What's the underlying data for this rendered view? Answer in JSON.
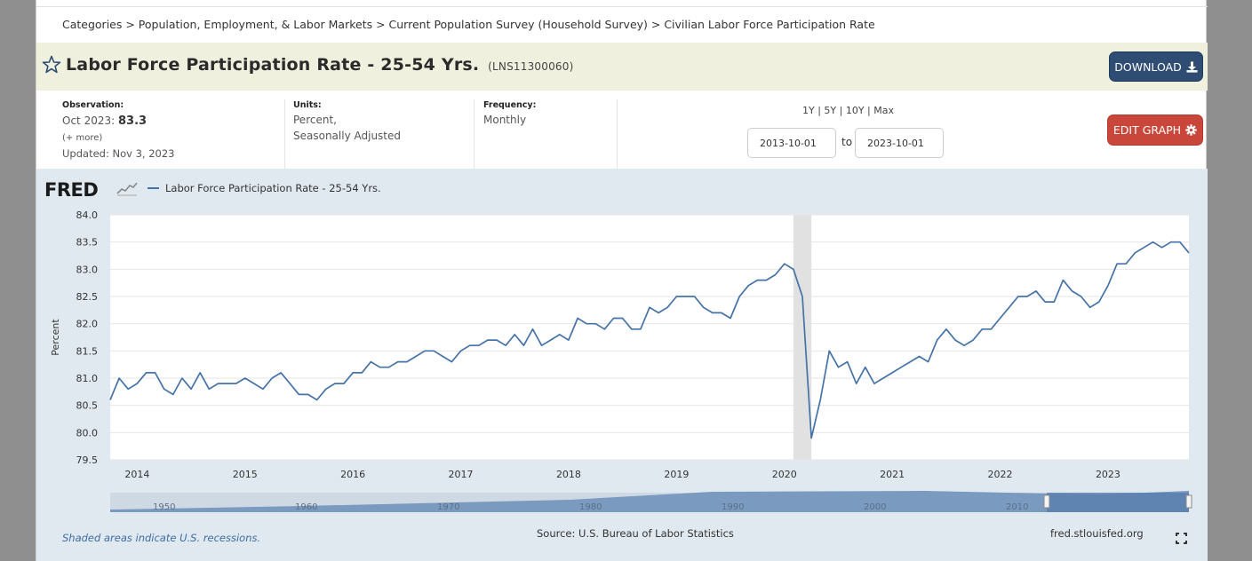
{
  "breadcrumb": {
    "text": "Categories > Population, Employment, & Labor Markets > Current Population Survey (Household Survey) > Civilian Labor Force Participation Rate"
  },
  "header": {
    "title": "Labor Force Participation Rate - 25-54 Yrs.",
    "series_id": "(LNS11300060)",
    "download_label": "DOWNLOAD",
    "edit_graph_label": "EDIT GRAPH",
    "star_icon": "star-outline-icon"
  },
  "meta": {
    "observation_label": "Observation:",
    "observation_date": "Oct 2023:",
    "observation_value": "83.3",
    "more_label": "(+ more)",
    "updated": "Updated: Nov 3, 2023",
    "units_label": "Units:",
    "units_line1": "Percent,",
    "units_line2": "Seasonally Adjusted",
    "frequency_label": "Frequency:",
    "frequency_value": "Monthly"
  },
  "range": {
    "r1y": "1Y",
    "r5y": "5Y",
    "r10y": "10Y",
    "rmax": "Max",
    "sep": " | ",
    "start": "2013-10-01",
    "end": "2023-10-01",
    "to_label": "to"
  },
  "graph": {
    "logo": "FRED",
    "legend_label": "Labor Force Participation Rate - 25-54 Yrs.",
    "series_color": "#4572a7",
    "recession_color": "#e1e1e1",
    "footnote": "Shaded areas indicate U.S. recessions.",
    "source": "Source: U.S. Bureau of Labor Statistics",
    "fred_link": "fred.stlouisfed.org"
  },
  "chart_data": {
    "type": "line",
    "ylabel": "Percent",
    "ylim": [
      79.5,
      84.0
    ],
    "yticks": [
      "84.0",
      "83.5",
      "83.0",
      "82.5",
      "82.0",
      "81.5",
      "81.0",
      "80.5",
      "80.0",
      "79.5"
    ],
    "xticks": [
      "2014",
      "2015",
      "2016",
      "2017",
      "2018",
      "2019",
      "2020",
      "2021",
      "2022",
      "2023"
    ],
    "x_start": "2013-10",
    "x_end": "2023-10",
    "grid": true,
    "recession": [
      "2020-02",
      "2020-04"
    ],
    "series": [
      {
        "name": "Labor Force Participation Rate - 25-54 Yrs.",
        "x": [
          "2013-10",
          "2013-11",
          "2013-12",
          "2014-01",
          "2014-02",
          "2014-03",
          "2014-04",
          "2014-05",
          "2014-06",
          "2014-07",
          "2014-08",
          "2014-09",
          "2014-10",
          "2014-11",
          "2014-12",
          "2015-01",
          "2015-02",
          "2015-03",
          "2015-04",
          "2015-05",
          "2015-06",
          "2015-07",
          "2015-08",
          "2015-09",
          "2015-10",
          "2015-11",
          "2015-12",
          "2016-01",
          "2016-02",
          "2016-03",
          "2016-04",
          "2016-05",
          "2016-06",
          "2016-07",
          "2016-08",
          "2016-09",
          "2016-10",
          "2016-11",
          "2016-12",
          "2017-01",
          "2017-02",
          "2017-03",
          "2017-04",
          "2017-05",
          "2017-06",
          "2017-07",
          "2017-08",
          "2017-09",
          "2017-10",
          "2017-11",
          "2017-12",
          "2018-01",
          "2018-02",
          "2018-03",
          "2018-04",
          "2018-05",
          "2018-06",
          "2018-07",
          "2018-08",
          "2018-09",
          "2018-10",
          "2018-11",
          "2018-12",
          "2019-01",
          "2019-02",
          "2019-03",
          "2019-04",
          "2019-05",
          "2019-06",
          "2019-07",
          "2019-08",
          "2019-09",
          "2019-10",
          "2019-11",
          "2019-12",
          "2020-01",
          "2020-02",
          "2020-03",
          "2020-04",
          "2020-05",
          "2020-06",
          "2020-07",
          "2020-08",
          "2020-09",
          "2020-10",
          "2020-11",
          "2020-12",
          "2021-01",
          "2021-02",
          "2021-03",
          "2021-04",
          "2021-05",
          "2021-06",
          "2021-07",
          "2021-08",
          "2021-09",
          "2021-10",
          "2021-11",
          "2021-12",
          "2022-01",
          "2022-02",
          "2022-03",
          "2022-04",
          "2022-05",
          "2022-06",
          "2022-07",
          "2022-08",
          "2022-09",
          "2022-10",
          "2022-11",
          "2022-12",
          "2023-01",
          "2023-02",
          "2023-03",
          "2023-04",
          "2023-05",
          "2023-06",
          "2023-07",
          "2023-08",
          "2023-09",
          "2023-10"
        ],
        "values": [
          80.6,
          81.0,
          80.8,
          80.9,
          81.1,
          81.1,
          80.8,
          80.7,
          81.0,
          80.8,
          81.1,
          80.8,
          80.9,
          80.9,
          80.9,
          81.0,
          80.9,
          80.8,
          81.0,
          81.1,
          80.9,
          80.7,
          80.7,
          80.6,
          80.8,
          80.9,
          80.9,
          81.1,
          81.1,
          81.3,
          81.2,
          81.2,
          81.3,
          81.3,
          81.4,
          81.5,
          81.5,
          81.4,
          81.3,
          81.5,
          81.6,
          81.6,
          81.7,
          81.7,
          81.6,
          81.8,
          81.6,
          81.9,
          81.6,
          81.7,
          81.8,
          81.7,
          82.1,
          82.0,
          82.0,
          81.9,
          82.1,
          82.1,
          81.9,
          81.9,
          82.3,
          82.2,
          82.3,
          82.5,
          82.5,
          82.5,
          82.3,
          82.2,
          82.2,
          82.1,
          82.5,
          82.7,
          82.8,
          82.8,
          82.9,
          83.1,
          83.0,
          82.5,
          79.9,
          80.6,
          81.5,
          81.2,
          81.3,
          80.9,
          81.2,
          80.9,
          81.0,
          81.1,
          81.2,
          81.3,
          81.4,
          81.3,
          81.7,
          81.9,
          81.7,
          81.6,
          81.7,
          81.9,
          81.9,
          82.1,
          82.3,
          82.5,
          82.5,
          82.6,
          82.4,
          82.4,
          82.8,
          82.6,
          82.5,
          82.3,
          82.4,
          82.7,
          83.1,
          83.1,
          83.3,
          83.4,
          83.5,
          83.4,
          83.5,
          83.5,
          83.3
        ]
      }
    ],
    "navigator": {
      "labels": [
        "1950",
        "1960",
        "1970",
        "1980",
        "1990",
        "2000",
        "2010"
      ]
    }
  }
}
